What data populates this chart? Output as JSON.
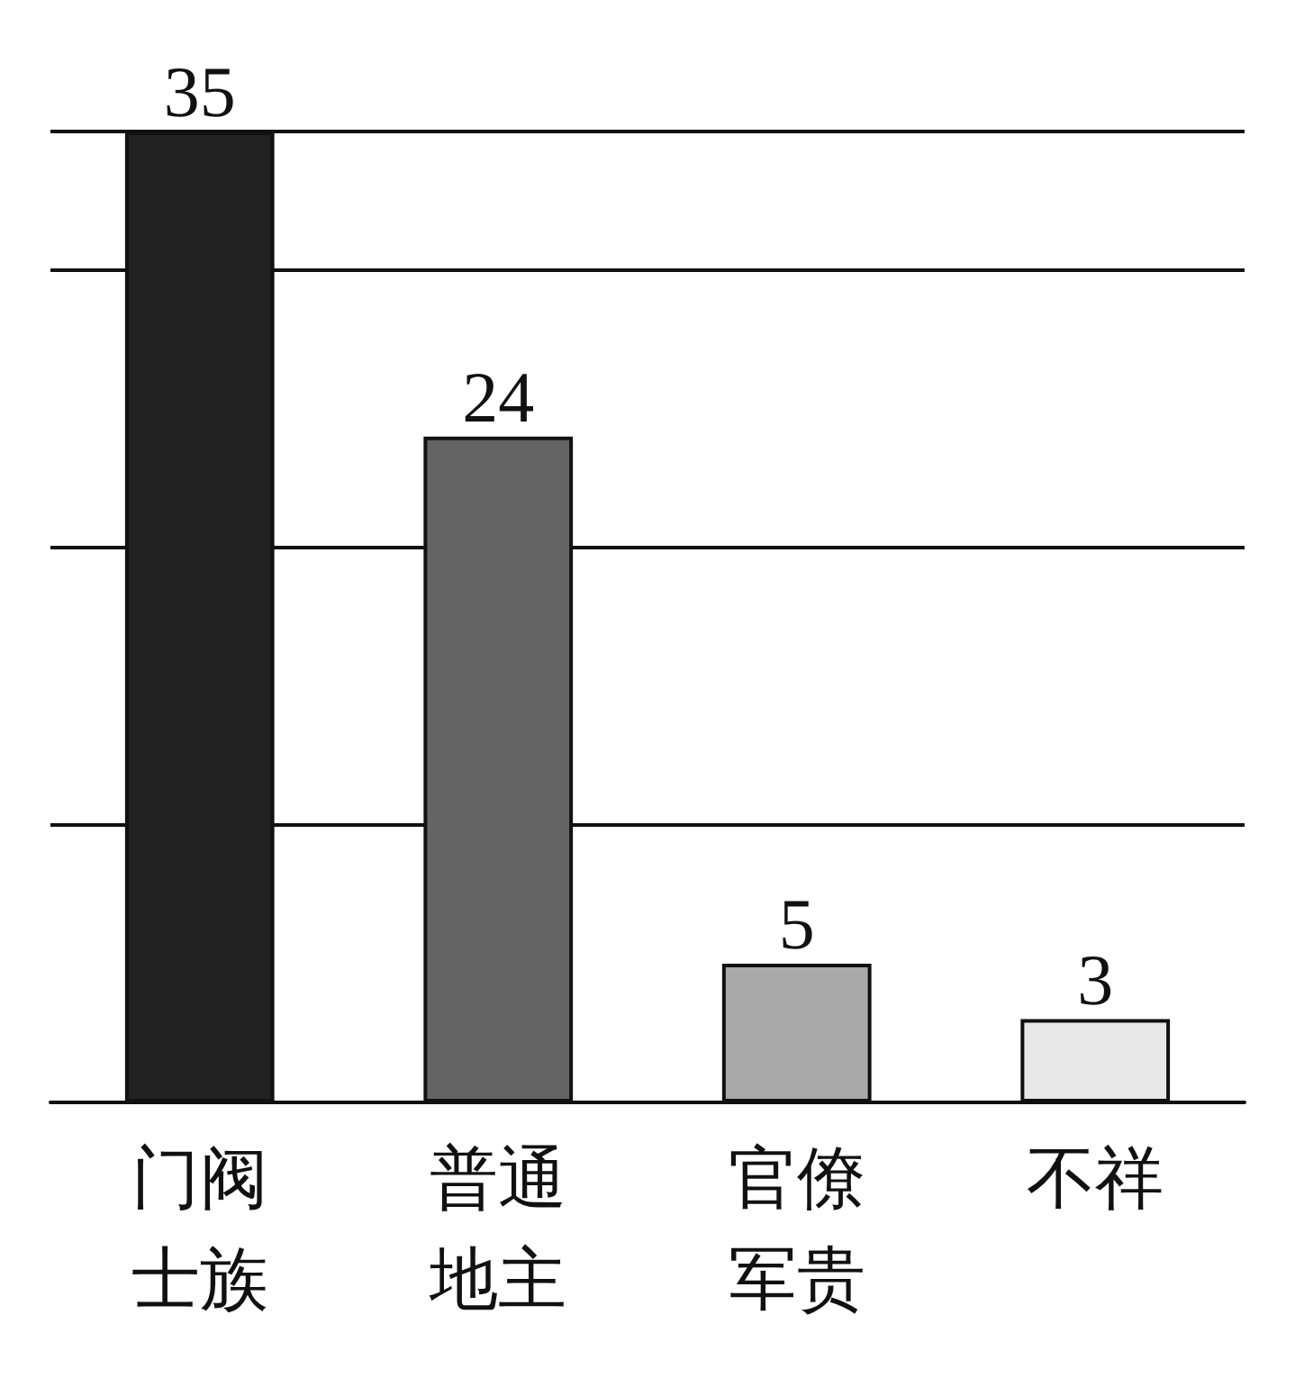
{
  "chart_data": {
    "type": "bar",
    "categories": [
      "门阀士族",
      "普通地主",
      "官僚军贵",
      "不祥"
    ],
    "values": [
      35,
      24,
      5,
      3
    ],
    "colors": [
      "#222222",
      "#646464",
      "#a9a9a9",
      "#e8e8e8"
    ],
    "data_labels": true,
    "grid": "y"
  }
}
